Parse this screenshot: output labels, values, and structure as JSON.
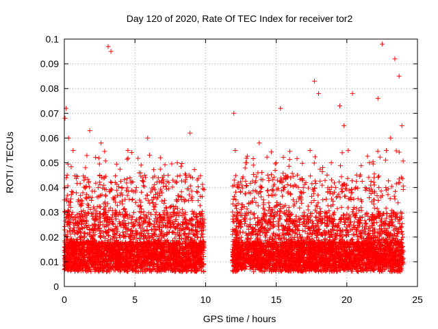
{
  "chart_data": {
    "type": "scatter",
    "title": "Day 120 of 2020, Rate Of TEC Index for receiver tor2",
    "xlabel": "GPS time / hours",
    "ylabel": "ROTI / TECUs",
    "xlim": [
      0,
      25
    ],
    "ylim": [
      0,
      0.1
    ],
    "xticks": [
      0,
      5,
      10,
      15,
      20,
      25
    ],
    "xtick_labels": [
      "0",
      "5",
      "10",
      "15",
      "20",
      "25"
    ],
    "yticks": [
      0,
      0.01,
      0.02,
      0.03,
      0.04,
      0.05,
      0.06,
      0.07,
      0.08,
      0.09,
      0.1
    ],
    "ytick_labels": [
      "0",
      "0.01",
      "0.02",
      "0.03",
      "0.04",
      "0.05",
      "0.06",
      "0.07",
      "0.08",
      "0.09",
      "0.1"
    ],
    "grid": true,
    "marker": "plus",
    "color": "#ff0000",
    "series": [
      {
        "x": [
          0.05,
          0.12,
          0.2,
          0.3,
          0.45,
          0.6,
          0.8,
          1.0,
          1.2,
          1.5,
          1.7,
          1.8,
          2.1,
          2.4,
          2.6,
          2.9,
          3.1,
          3.3,
          3.6,
          3.9,
          4.2,
          4.5,
          4.8,
          5.1,
          5.4,
          5.7,
          5.9,
          6.2,
          6.5,
          6.8,
          7.1,
          7.4,
          7.7,
          8.0,
          8.3,
          8.6,
          8.9,
          9.2,
          9.5,
          9.8,
          0.1,
          0.25,
          0.4,
          0.7,
          1.1,
          1.4,
          1.9,
          2.3,
          2.7,
          3.0,
          3.2,
          3.5,
          4.0,
          4.6,
          5.0,
          5.5,
          6.0,
          6.1,
          6.7,
          7.3,
          7.9,
          8.4,
          8.8,
          9.1,
          9.6,
          11.9,
          12.0,
          12.1,
          12.3,
          12.6,
          12.9,
          13.2,
          13.5,
          13.8,
          14.1,
          14.4,
          14.7,
          15.0,
          15.3,
          15.6,
          15.9,
          16.2,
          16.5,
          16.8,
          17.1,
          17.4,
          17.7,
          18.0,
          18.3,
          18.6,
          18.9,
          19.2,
          19.5,
          19.8,
          20.1,
          20.4,
          20.7,
          21.0,
          21.3,
          21.6,
          21.9,
          22.2,
          22.5,
          22.8,
          23.1,
          23.4,
          23.7,
          23.9,
          12.05,
          12.2,
          12.5,
          13.0,
          13.6,
          14.3,
          15.1,
          15.2,
          15.8,
          16.4,
          17.0,
          17.6,
          17.8,
          18.2,
          18.8,
          19.4,
          19.6,
          19.9,
          20.5,
          20.8,
          21.2,
          21.8,
          22.4,
          22.6,
          23.0,
          23.3,
          23.5,
          23.6,
          23.8
        ],
        "y": [
          0.068,
          0.072,
          0.045,
          0.06,
          0.032,
          0.038,
          0.028,
          0.035,
          0.02,
          0.048,
          0.032,
          0.063,
          0.025,
          0.04,
          0.058,
          0.03,
          0.097,
          0.095,
          0.042,
          0.03,
          0.028,
          0.055,
          0.035,
          0.04,
          0.028,
          0.045,
          0.06,
          0.035,
          0.03,
          0.052,
          0.028,
          0.042,
          0.03,
          0.05,
          0.035,
          0.045,
          0.062,
          0.03,
          0.025,
          0.02,
          0.015,
          0.012,
          0.01,
          0.014,
          0.011,
          0.013,
          0.009,
          0.012,
          0.01,
          0.015,
          0.012,
          0.011,
          0.01,
          0.013,
          0.009,
          0.012,
          0.011,
          0.01,
          0.013,
          0.012,
          0.011,
          0.01,
          0.013,
          0.012,
          0.01,
          0.015,
          0.07,
          0.055,
          0.04,
          0.032,
          0.05,
          0.03,
          0.042,
          0.058,
          0.035,
          0.045,
          0.03,
          0.05,
          0.072,
          0.04,
          0.032,
          0.035,
          0.045,
          0.038,
          0.042,
          0.055,
          0.083,
          0.078,
          0.035,
          0.045,
          0.05,
          0.04,
          0.073,
          0.065,
          0.055,
          0.078,
          0.045,
          0.035,
          0.04,
          0.05,
          0.035,
          0.076,
          0.098,
          0.055,
          0.06,
          0.092,
          0.085,
          0.065,
          0.012,
          0.01,
          0.013,
          0.011,
          0.012,
          0.01,
          0.013,
          0.011,
          0.012,
          0.01,
          0.013,
          0.011,
          0.012,
          0.01,
          0.013,
          0.011,
          0.012,
          0.01,
          0.013,
          0.011,
          0.012,
          0.01,
          0.013,
          0.011,
          0.012,
          0.01,
          0.013,
          0.011,
          0.012
        ]
      }
    ]
  }
}
